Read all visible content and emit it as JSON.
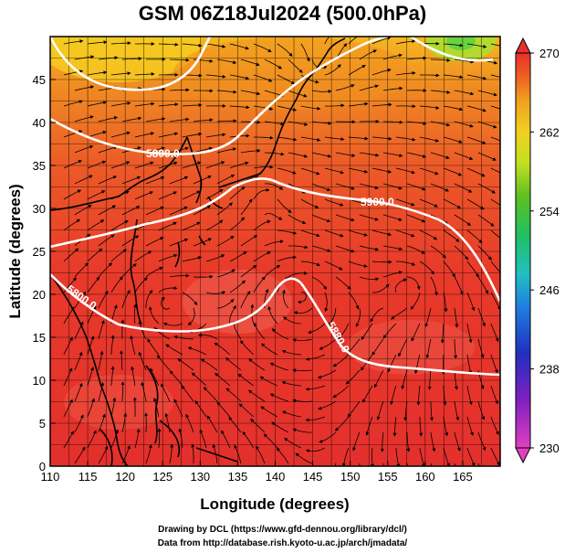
{
  "title": "GSM 06Z18Jul2024 (500.0hPa)",
  "x_axis": {
    "label": "Longitude (degrees)",
    "range": [
      110,
      170
    ],
    "ticks": [
      "110",
      "115",
      "120",
      "125",
      "130",
      "135",
      "140",
      "145",
      "150",
      "155",
      "160",
      "165"
    ]
  },
  "y_axis": {
    "label": "Latitude  (degrees)",
    "range": [
      0,
      50
    ],
    "ticks": [
      "0",
      "5",
      "10",
      "15",
      "20",
      "25",
      "30",
      "35",
      "40",
      "45"
    ]
  },
  "colorbar": {
    "range": [
      230,
      270
    ],
    "ticks": [
      "230",
      "238",
      "246",
      "254",
      "262",
      "270"
    ],
    "colors": [
      "#e040c0",
      "#8020c0",
      "#2020c0",
      "#2080e0",
      "#20c0c0",
      "#20c060",
      "#60c020",
      "#c0e020",
      "#f0e020",
      "#f0a020",
      "#f06020",
      "#e83030"
    ]
  },
  "contour_labels": [
    "5800.0",
    "5900.0",
    "5800.0",
    "5880.0"
  ],
  "credits": {
    "line1": "Drawing by DCL (https://www.gfd-dennou.org/library/dcl/)",
    "line2": "Data from http://database.rish.kyoto-u.ac.jp/arch/jmadata/"
  },
  "colors": {
    "field_warm": "#e83a2a",
    "field_mid": "#f07a25",
    "field_cool": "#f5c020",
    "contour": "#ffffff"
  }
}
